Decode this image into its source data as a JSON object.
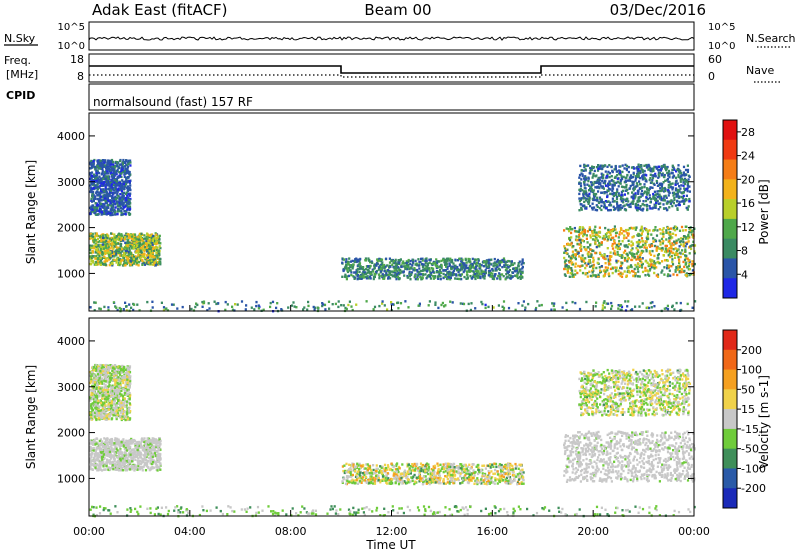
{
  "header": {
    "title": "Adak East (fitACF)",
    "beam": "Beam 00",
    "date": "03/Dec/2016"
  },
  "ops": {
    "nsky_label": "N.Sky",
    "nsky_ticks": [
      "10^5",
      "10^0"
    ],
    "nsearch_label": "N.Search",
    "freq_label_line1": "Freq.",
    "freq_label_line2": "[MHz]",
    "freq_ticks": [
      "18",
      "8"
    ],
    "nave_label": "Nave",
    "nave_ticks": [
      "60",
      "0"
    ],
    "cpid_label": "CPID",
    "cpid_text": "normalsound (fast) 157 RF"
  },
  "colors": {
    "power": [
      "#1f28e6",
      "#2a55a8",
      "#3a8a62",
      "#4fa84a",
      "#b8cf2a",
      "#f2b21a",
      "#f57d16",
      "#f03a12",
      "#e01010"
    ],
    "velocity": [
      "#1a2ab8",
      "#2a5aa8",
      "#3f8f5a",
      "#6fcc3a",
      "#c8c8c8",
      "#f0d24a",
      "#f5a020",
      "#f06818",
      "#e02818"
    ]
  },
  "chart_data": [
    {
      "type": "heatmap",
      "title": "Power",
      "xlabel": "",
      "ylabel": "Slant Range [km]",
      "xlim": [
        0,
        24
      ],
      "ylim": [
        180,
        4500
      ],
      "yticks": [
        1000,
        2000,
        3000,
        4000
      ],
      "colorbar": {
        "label": "Power [dB]",
        "ticks": [
          "28",
          "24",
          "20",
          "16",
          "12",
          "8",
          "4"
        ],
        "range": [
          0,
          30
        ]
      },
      "regions": [
        {
          "t": [
            0.0,
            2.8
          ],
          "r": [
            1200,
            1900
          ],
          "v": [
            6,
            20
          ]
        },
        {
          "t": [
            0.0,
            1.6
          ],
          "r": [
            2300,
            3500
          ],
          "v": [
            2,
            8
          ]
        },
        {
          "t": [
            10.0,
            17.2
          ],
          "r": [
            900,
            1350
          ],
          "v": [
            4,
            12
          ]
        },
        {
          "t": [
            18.8,
            24.0
          ],
          "r": [
            950,
            2050
          ],
          "v": [
            6,
            22
          ]
        },
        {
          "t": [
            19.4,
            23.8
          ],
          "r": [
            2400,
            3400
          ],
          "v": [
            3,
            10
          ]
        },
        {
          "t": [
            0.0,
            24.0
          ],
          "r": [
            200,
            420
          ],
          "v": [
            3,
            14
          ]
        }
      ]
    },
    {
      "type": "heatmap",
      "title": "Velocity",
      "xlabel": "Time UT",
      "ylabel": "Slant Range [km]",
      "xlim": [
        0,
        24
      ],
      "ylim": [
        180,
        4500
      ],
      "yticks": [
        1000,
        2000,
        3000,
        4000
      ],
      "xticks": [
        "00:00",
        "04:00",
        "08:00",
        "12:00",
        "16:00",
        "20:00",
        "00:00"
      ],
      "colorbar": {
        "label": "Velocity [m s-1]",
        "ticks": [
          "200",
          "100",
          "50",
          "15",
          "-15",
          "-50",
          "-100",
          "-200"
        ],
        "range": [
          -200,
          200
        ]
      },
      "regions": [
        {
          "t": [
            0.0,
            2.8
          ],
          "r": [
            1200,
            1900
          ],
          "v": [
            -30,
            20
          ]
        },
        {
          "t": [
            0.0,
            1.6
          ],
          "r": [
            2300,
            3500
          ],
          "v": [
            -60,
            40
          ]
        },
        {
          "t": [
            10.0,
            17.2
          ],
          "r": [
            900,
            1350
          ],
          "v": [
            -80,
            90
          ]
        },
        {
          "t": [
            18.8,
            24.0
          ],
          "r": [
            950,
            2050
          ],
          "v": [
            -25,
            20
          ]
        },
        {
          "t": [
            19.4,
            23.8
          ],
          "r": [
            2400,
            3400
          ],
          "v": [
            -70,
            60
          ]
        },
        {
          "t": [
            0.0,
            24.0
          ],
          "r": [
            200,
            420
          ],
          "v": [
            -90,
            10
          ]
        }
      ]
    }
  ]
}
